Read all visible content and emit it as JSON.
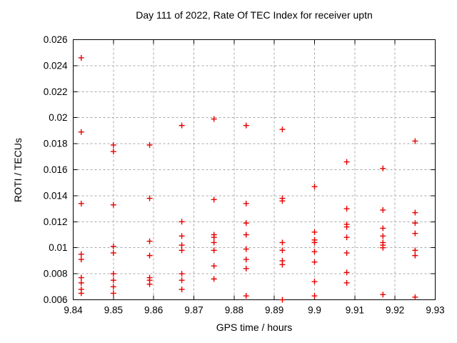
{
  "chart_data": {
    "type": "scatter",
    "title": "Day 111 of 2022, Rate Of TEC Index for receiver uptn",
    "xlabel": "GPS time / hours",
    "ylabel": "ROTI / TECUs",
    "xlim": [
      9.84,
      9.93
    ],
    "ylim": [
      0.006,
      0.026
    ],
    "grid": true,
    "legend": "none",
    "x_tick_values": [
      9.84,
      9.85,
      9.86,
      9.87,
      9.88,
      9.89,
      9.9,
      9.91,
      9.92,
      9.93
    ],
    "x_tick_labels": [
      "9.84",
      "9.85",
      "9.86",
      "9.87",
      "9.88",
      "9.89",
      "9.9",
      "9.91",
      "9.92",
      "9.93"
    ],
    "y_tick_values": [
      0.006,
      0.008,
      0.01,
      0.012,
      0.014,
      0.016,
      0.018,
      0.02,
      0.022,
      0.024,
      0.026
    ],
    "y_tick_labels": [
      "0.006",
      "0.008",
      "0.01",
      "0.012",
      "0.014",
      "0.016",
      "0.018",
      "0.02",
      "0.022",
      "0.024",
      "0.026"
    ],
    "colors": {
      "marker": "#e60000",
      "grid": "#a8a8a8",
      "axis": "#000000",
      "background": "#ffffff"
    },
    "marker_shape": "plus",
    "series": [
      {
        "name": "ROTI",
        "points": [
          [
            9.842,
            0.0246
          ],
          [
            9.842,
            0.0189
          ],
          [
            9.842,
            0.0134
          ],
          [
            9.842,
            0.0095
          ],
          [
            9.842,
            0.0091
          ],
          [
            9.842,
            0.0077
          ],
          [
            9.842,
            0.0073
          ],
          [
            9.842,
            0.0068
          ],
          [
            9.842,
            0.0065
          ],
          [
            9.85,
            0.0179
          ],
          [
            9.85,
            0.0174
          ],
          [
            9.85,
            0.0133
          ],
          [
            9.85,
            0.0101
          ],
          [
            9.85,
            0.0096
          ],
          [
            9.85,
            0.008
          ],
          [
            9.85,
            0.0075
          ],
          [
            9.85,
            0.007
          ],
          [
            9.85,
            0.0065
          ],
          [
            9.859,
            0.0179
          ],
          [
            9.859,
            0.0138
          ],
          [
            9.859,
            0.0105
          ],
          [
            9.859,
            0.0094
          ],
          [
            9.859,
            0.0077
          ],
          [
            9.859,
            0.0075
          ],
          [
            9.859,
            0.0072
          ],
          [
            9.867,
            0.0194
          ],
          [
            9.867,
            0.012
          ],
          [
            9.867,
            0.0109
          ],
          [
            9.867,
            0.0102
          ],
          [
            9.867,
            0.0098
          ],
          [
            9.867,
            0.008
          ],
          [
            9.867,
            0.0075
          ],
          [
            9.867,
            0.0068
          ],
          [
            9.875,
            0.0199
          ],
          [
            9.875,
            0.0137
          ],
          [
            9.875,
            0.011
          ],
          [
            9.875,
            0.0108
          ],
          [
            9.875,
            0.0104
          ],
          [
            9.875,
            0.0098
          ],
          [
            9.875,
            0.0086
          ],
          [
            9.875,
            0.0076
          ],
          [
            9.883,
            0.0194
          ],
          [
            9.883,
            0.0134
          ],
          [
            9.883,
            0.0119
          ],
          [
            9.883,
            0.011
          ],
          [
            9.883,
            0.0099
          ],
          [
            9.883,
            0.0091
          ],
          [
            9.883,
            0.0084
          ],
          [
            9.883,
            0.0063
          ],
          [
            9.892,
            0.0191
          ],
          [
            9.892,
            0.0138
          ],
          [
            9.892,
            0.0136
          ],
          [
            9.892,
            0.0104
          ],
          [
            9.892,
            0.0098
          ],
          [
            9.892,
            0.009
          ],
          [
            9.892,
            0.0087
          ],
          [
            9.892,
            0.006
          ],
          [
            9.9,
            0.0147
          ],
          [
            9.9,
            0.0112
          ],
          [
            9.9,
            0.0106
          ],
          [
            9.9,
            0.0104
          ],
          [
            9.9,
            0.0097
          ],
          [
            9.9,
            0.0089
          ],
          [
            9.9,
            0.0074
          ],
          [
            9.9,
            0.0063
          ],
          [
            9.908,
            0.0166
          ],
          [
            9.908,
            0.013
          ],
          [
            9.908,
            0.0118
          ],
          [
            9.908,
            0.0116
          ],
          [
            9.908,
            0.0108
          ],
          [
            9.908,
            0.0096
          ],
          [
            9.908,
            0.0081
          ],
          [
            9.908,
            0.0073
          ],
          [
            9.917,
            0.0161
          ],
          [
            9.917,
            0.0129
          ],
          [
            9.917,
            0.0115
          ],
          [
            9.917,
            0.0109
          ],
          [
            9.917,
            0.0104
          ],
          [
            9.917,
            0.0102
          ],
          [
            9.917,
            0.01
          ],
          [
            9.917,
            0.0064
          ],
          [
            9.925,
            0.0182
          ],
          [
            9.925,
            0.0127
          ],
          [
            9.925,
            0.0119
          ],
          [
            9.925,
            0.0111
          ],
          [
            9.925,
            0.0098
          ],
          [
            9.925,
            0.0094
          ],
          [
            9.925,
            0.0062
          ]
        ]
      }
    ]
  }
}
